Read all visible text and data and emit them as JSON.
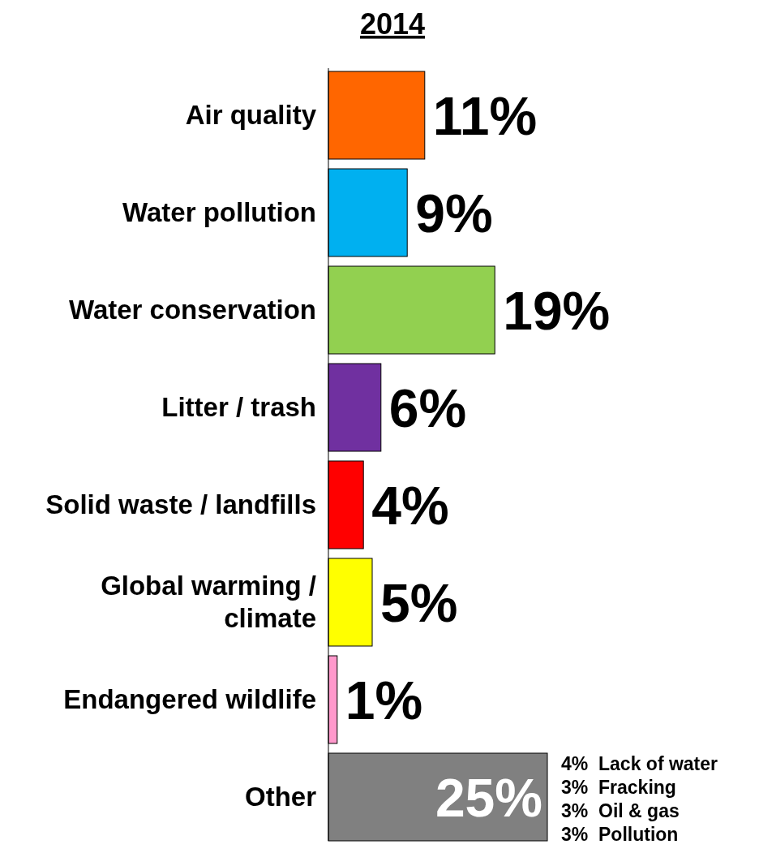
{
  "chart_data": {
    "type": "bar",
    "orientation": "horizontal",
    "title": "2014",
    "categories": [
      "Air quality",
      "Water pollution",
      "Water conservation",
      "Litter / trash",
      "Solid waste / landfills",
      "Global warming / climate",
      "Endangered wildlife",
      "Other"
    ],
    "values": [
      11,
      9,
      19,
      6,
      4,
      5,
      1,
      25
    ],
    "value_labels": [
      "11%",
      "9%",
      "19%",
      "6%",
      "4%",
      "5%",
      "1%",
      "25%"
    ],
    "colors": [
      "#ff6600",
      "#00b0f0",
      "#92d050",
      "#7030a0",
      "#ff0000",
      "#ffff00",
      "#ff99cc",
      "#808080"
    ],
    "annotations": [
      "4%  Lack of water",
      "3%  Fracking",
      "3%  Oil & gas",
      "3%  Pollution"
    ]
  }
}
